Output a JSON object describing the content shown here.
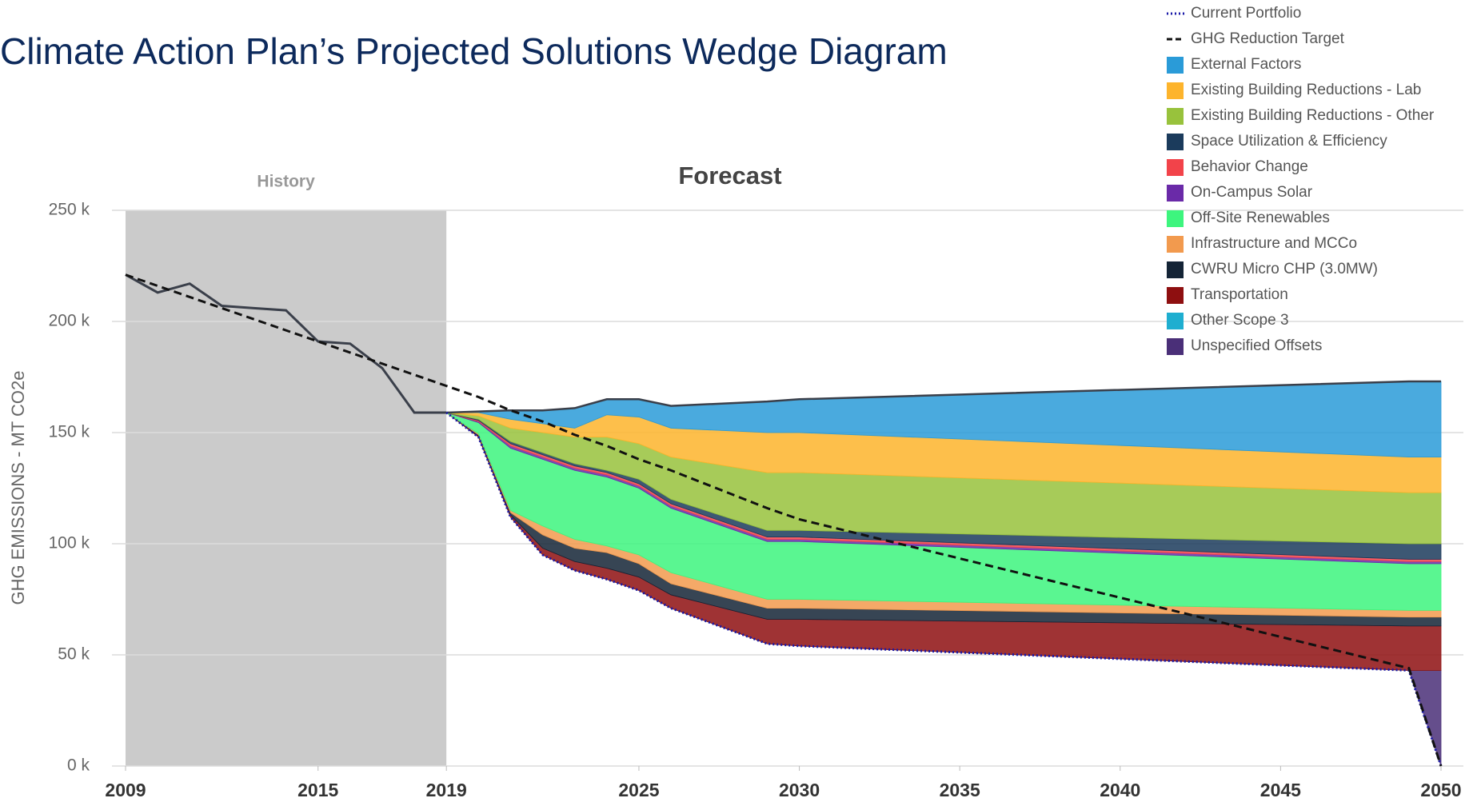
{
  "chart_data": {
    "type": "area",
    "title": "Climate Action Plan’s Projected Solutions Wedge Diagram",
    "y_label": "GHG EMISSIONS - MT CO2e",
    "annotations": [
      "History",
      "Forecast"
    ],
    "history_range": [
      2009,
      2019
    ],
    "xlim": [
      2009,
      2050
    ],
    "xticks": [
      2009,
      2015,
      2019,
      2025,
      2030,
      2035,
      2040,
      2045,
      2050
    ],
    "ylim": [
      0,
      250000
    ],
    "yticks": [
      {
        "value": 0,
        "label": "0 k"
      },
      {
        "value": 50000,
        "label": "50 k"
      },
      {
        "value": 100000,
        "label": "100 k"
      },
      {
        "value": 150000,
        "label": "150 k"
      },
      {
        "value": 200000,
        "label": "200 k"
      },
      {
        "value": 250000,
        "label": "250 k"
      }
    ],
    "grid": true,
    "legend": "top-right",
    "stacked": true,
    "x": [
      2009,
      2010,
      2011,
      2012,
      2013,
      2014,
      2015,
      2016,
      2017,
      2018,
      2019,
      2020,
      2021,
      2022,
      2023,
      2024,
      2025,
      2026,
      2029,
      2030,
      2049,
      2050
    ],
    "lines": [
      {
        "name": "Current Portfolio",
        "color": "#1a1aa8",
        "style": "dotted",
        "values": [
          221000,
          213000,
          217000,
          207000,
          206000,
          205000,
          191000,
          190000,
          179000,
          159000,
          159000,
          148000,
          112000,
          95000,
          88000,
          84000,
          79000,
          71000,
          55000,
          54000,
          43000,
          0
        ]
      },
      {
        "name": "GHG Reduction Target",
        "color": "#111111",
        "style": "dashed",
        "values": [
          221000,
          216000,
          211000,
          206000,
          201000,
          196000,
          191000,
          186000,
          181000,
          176000,
          171000,
          166000,
          160000,
          155000,
          149000,
          144000,
          138000,
          133000,
          116000,
          111000,
          44000,
          0
        ]
      }
    ],
    "series": [
      {
        "name": "External Factors",
        "color": "#2a9bd8",
        "values": [
          null,
          null,
          null,
          null,
          null,
          null,
          null,
          null,
          null,
          null,
          0,
          500,
          4000,
          6000,
          9000,
          7000,
          8000,
          10000,
          14000,
          15000,
          34000,
          34000
        ]
      },
      {
        "name": "Existing Building Reductions - Lab",
        "color": "#fdb42c",
        "values": [
          null,
          null,
          null,
          null,
          null,
          null,
          null,
          null,
          null,
          null,
          0,
          1500,
          4000,
          4000,
          4000,
          10000,
          12000,
          13000,
          18000,
          18000,
          16000,
          16000
        ]
      },
      {
        "name": "Existing Building Reductions - Other",
        "color": "#98c23c",
        "values": [
          null,
          null,
          null,
          null,
          null,
          null,
          null,
          null,
          null,
          null,
          0,
          1500,
          6000,
          9000,
          12000,
          15000,
          16000,
          19000,
          26000,
          26000,
          23000,
          23000
        ]
      },
      {
        "name": "Space Utilization & Efficiency",
        "color": "#1b3b5c",
        "values": [
          null,
          null,
          null,
          null,
          null,
          null,
          null,
          null,
          null,
          null,
          0,
          500,
          1000,
          1000,
          1000,
          1000,
          2000,
          2000,
          3000,
          3000,
          7000,
          7000
        ]
      },
      {
        "name": "Behavior Change",
        "color": "#f2434a",
        "values": [
          null,
          null,
          null,
          null,
          null,
          null,
          null,
          null,
          null,
          null,
          0,
          500,
          1000,
          1000,
          1000,
          1000,
          1000,
          1000,
          1000,
          1000,
          1000,
          1000
        ]
      },
      {
        "name": "On-Campus Solar",
        "color": "#6a2aa8",
        "values": [
          null,
          null,
          null,
          null,
          null,
          null,
          null,
          null,
          null,
          null,
          0,
          500,
          1000,
          1000,
          1000,
          1000,
          1000,
          1000,
          1000,
          1000,
          1000,
          1000
        ]
      },
      {
        "name": "Off-Site Renewables",
        "color": "#3df57e",
        "values": [
          null,
          null,
          null,
          null,
          null,
          null,
          null,
          null,
          null,
          null,
          0,
          5000,
          28000,
          30000,
          31000,
          31000,
          30000,
          29000,
          26000,
          26000,
          21000,
          21000
        ]
      },
      {
        "name": "Infrastructure and MCCo",
        "color": "#f29a4e",
        "values": [
          null,
          null,
          null,
          null,
          null,
          null,
          null,
          null,
          null,
          null,
          0,
          500,
          1000,
          4000,
          4000,
          3000,
          4000,
          5000,
          4000,
          4000,
          3000,
          3000
        ]
      },
      {
        "name": "CWRU Micro CHP (3.0MW)",
        "color": "#142436",
        "values": [
          null,
          null,
          null,
          null,
          null,
          null,
          null,
          null,
          null,
          null,
          0,
          500,
          1000,
          6000,
          6000,
          7000,
          6000,
          5000,
          5000,
          5000,
          4000,
          4000
        ]
      },
      {
        "name": "Transportation",
        "color": "#8e0f10",
        "values": [
          null,
          null,
          null,
          null,
          null,
          null,
          null,
          null,
          null,
          null,
          0,
          500,
          1000,
          3000,
          4000,
          5000,
          6000,
          6000,
          11000,
          12000,
          20000,
          20000
        ]
      },
      {
        "name": "Other Scope 3",
        "color": "#1eaed0",
        "values": [
          null,
          null,
          null,
          null,
          null,
          null,
          null,
          null,
          null,
          null,
          0,
          0,
          0,
          0,
          0,
          0,
          0,
          0,
          0,
          0,
          0,
          0
        ]
      },
      {
        "name": "Unspecified Offsets",
        "color": "#4a2f78",
        "values": [
          null,
          null,
          null,
          null,
          null,
          null,
          null,
          null,
          null,
          null,
          0,
          0,
          0,
          0,
          0,
          0,
          0,
          0,
          0,
          0,
          0,
          43000
        ]
      }
    ]
  }
}
